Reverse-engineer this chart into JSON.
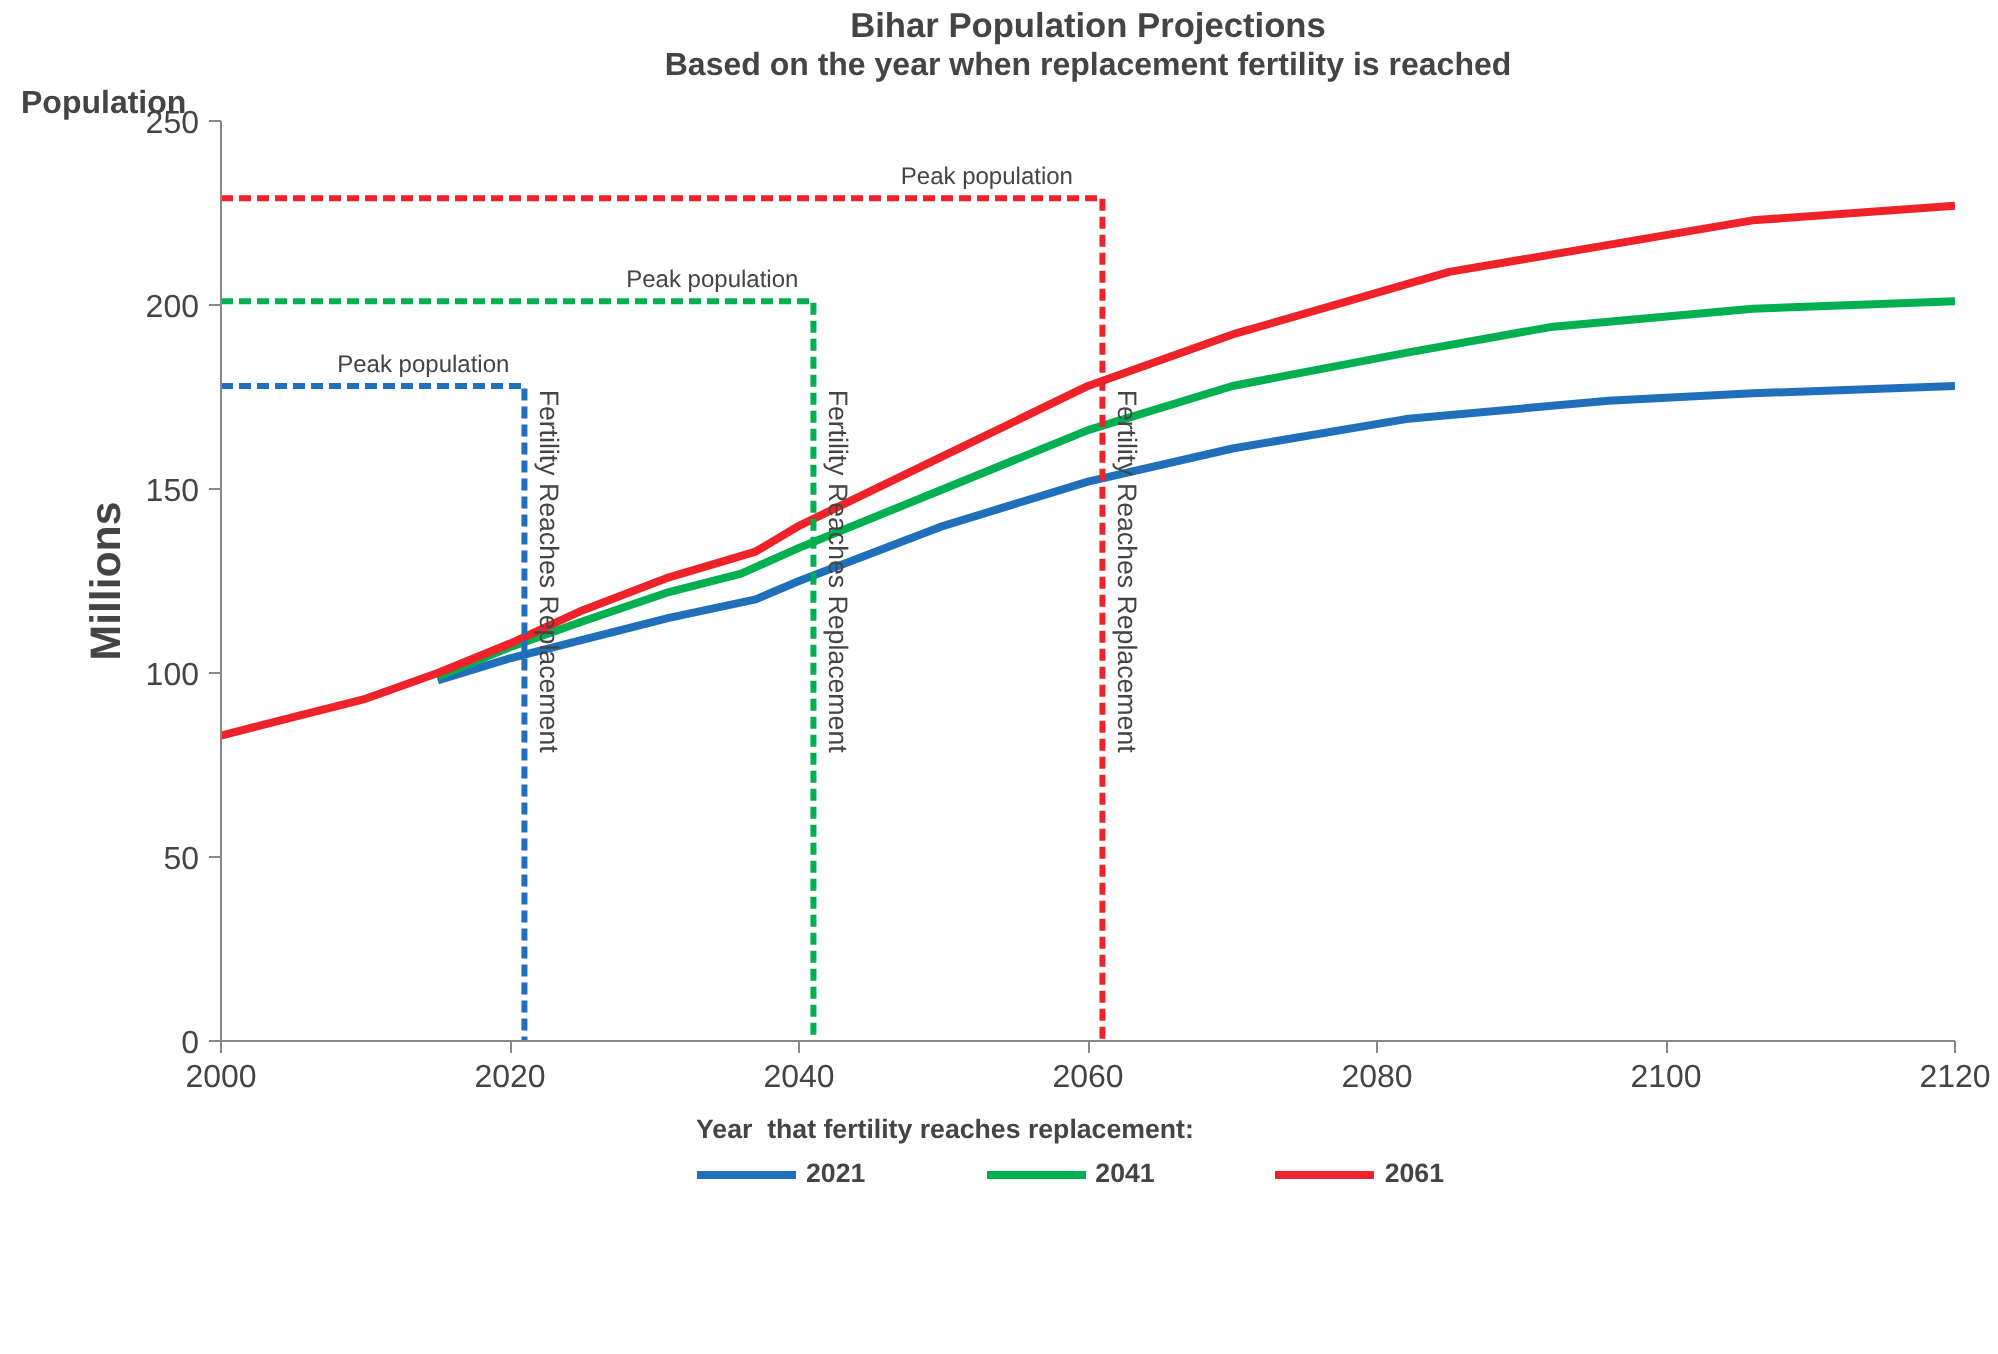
{
  "chart_data": {
    "type": "line",
    "title": "Bihar Population Projections",
    "subtitle": "Based on the year when replacement fertility is reached",
    "ylabel": "Millions",
    "legend_title": "Year  that fertility reaches replacement:",
    "legend": "bottom",
    "grid": false,
    "marker": "none",
    "xlim": [
      2000,
      2120
    ],
    "xticks": [
      2000,
      2020,
      2040,
      2060,
      2080,
      2100,
      2120
    ],
    "ylim": [
      0,
      250
    ],
    "yticks": [
      0,
      50,
      100,
      150,
      200,
      250
    ],
    "annotations": [
      "Population",
      {
        "text": "Peak population",
        "x": 2014,
        "y": 178
      },
      {
        "text": "Peak population",
        "x": 2034,
        "y": 201
      },
      {
        "text": "Peak population",
        "x": 2053,
        "y": 229
      },
      {
        "text": "Fertility Reaches Replacement",
        "x": 2021,
        "y": 177
      },
      {
        "text": "Fertility Reaches Replacement",
        "x": 2041,
        "y": 177
      },
      {
        "text": "Fertility Reaches Replacement",
        "x": 2061,
        "y": 177
      }
    ],
    "series": [
      {
        "name": "2021",
        "color": "#1f6fba",
        "x": [
          2015,
          2020,
          2025,
          2031,
          2037,
          2040,
          2050,
          2060,
          2070,
          2082,
          2096,
          2106,
          2120
        ],
        "values": [
          98,
          104,
          109,
          115,
          120,
          125,
          140,
          152,
          161,
          169,
          174,
          176,
          178
        ]
      },
      {
        "name": "2041",
        "color": "#00b050",
        "x": [
          2015,
          2020,
          2025,
          2031,
          2036,
          2040,
          2050,
          2060,
          2070,
          2082,
          2092,
          2106,
          2120
        ],
        "values": [
          99,
          107,
          114,
          122,
          127,
          134,
          150,
          166,
          178,
          187,
          194,
          199,
          201
        ]
      },
      {
        "name": "2061",
        "color": "#ee2228",
        "x": [
          2000,
          2005,
          2010,
          2015,
          2020,
          2025,
          2031,
          2037,
          2040,
          2050,
          2060,
          2070,
          2085,
          2106,
          2120
        ],
        "values": [
          83,
          88,
          93,
          100,
          108,
          117,
          126,
          133,
          140,
          159,
          178,
          192,
          209,
          223,
          227
        ]
      },
      {
        "color": "#1f6fba",
        "line_style": "dashed",
        "x": [
          2000,
          2021,
          2021
        ],
        "values": [
          178,
          178,
          0
        ]
      },
      {
        "color": "#00b050",
        "line_style": "dashed",
        "x": [
          2000,
          2041,
          2041
        ],
        "values": [
          201,
          201,
          0
        ]
      },
      {
        "color": "#ee2228",
        "line_style": "dashed",
        "x": [
          2000,
          2061,
          2061
        ],
        "values": [
          229,
          229,
          0
        ]
      }
    ]
  }
}
